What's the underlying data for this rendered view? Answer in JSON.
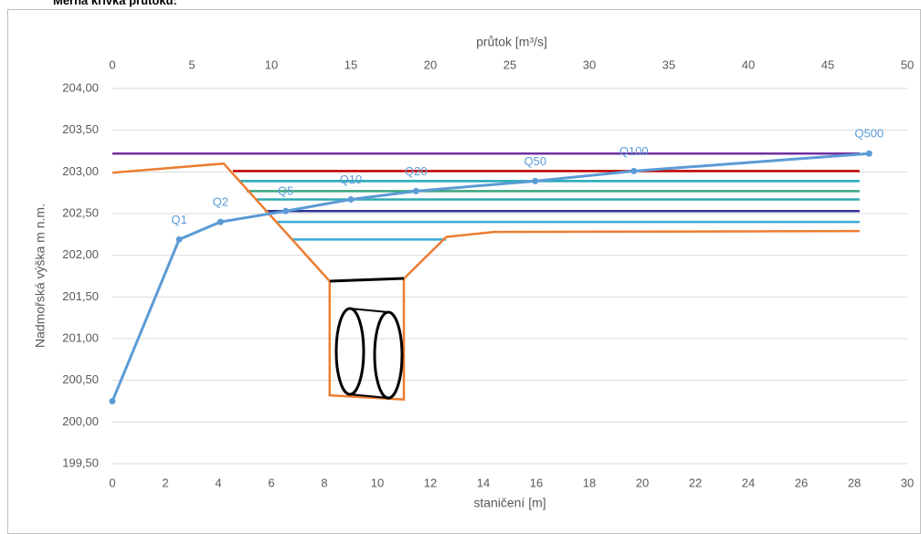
{
  "chart_data": {
    "type": "line",
    "title": "Měrná křivka průtoku:",
    "x_label": "staničení [m]",
    "x2_label": "průtok [m³/s]",
    "y_label": "Nadmořská výška m n.m.",
    "xlim": [
      0,
      30
    ],
    "xticks": [
      0,
      2,
      4,
      6,
      8,
      10,
      12,
      14,
      16,
      18,
      20,
      22,
      24,
      26,
      28,
      30
    ],
    "x2lim": [
      0,
      50
    ],
    "x2ticks": [
      0,
      5,
      10,
      15,
      20,
      25,
      30,
      35,
      40,
      45,
      50
    ],
    "ylim": [
      199.5,
      204
    ],
    "yticks": [
      {
        "value": 199.5,
        "label": "199,50"
      },
      {
        "value": 200,
        "label": "200,00"
      },
      {
        "value": 200.5,
        "label": "200,50"
      },
      {
        "value": 201,
        "label": "201,00"
      },
      {
        "value": 201.5,
        "label": "201,50"
      },
      {
        "value": 202,
        "label": "202,00"
      },
      {
        "value": 202.5,
        "label": "202,50"
      },
      {
        "value": 203,
        "label": "203,00"
      },
      {
        "value": 203.5,
        "label": "203,50"
      },
      {
        "value": 204,
        "label": "204,00"
      }
    ],
    "grid": true,
    "series": [
      {
        "color": "#7030a0",
        "x": [
          0,
          28.2
        ],
        "values": [
          203.22,
          203.22
        ]
      },
      {
        "color": "#c00000",
        "x": [
          4.55,
          28.2
        ],
        "values": [
          203.01,
          203.01
        ]
      },
      {
        "color": "#20a9b8",
        "x": [
          4.8,
          28.2
        ],
        "values": [
          202.89,
          202.89
        ]
      },
      {
        "color": "#3aa57a",
        "x": [
          5.07,
          28.2
        ],
        "values": [
          202.77,
          202.77
        ]
      },
      {
        "color": "#2eabb0",
        "x": [
          5.41,
          28.2
        ],
        "values": [
          202.67,
          202.67
        ]
      },
      {
        "color": "#2e3192",
        "x": [
          5.76,
          28.2
        ],
        "values": [
          202.53,
          202.53
        ]
      },
      {
        "color": "#3fa9d6",
        "x": [
          6.17,
          28.2
        ],
        "values": [
          202.4,
          202.4
        ]
      },
      {
        "color": "#38aad8",
        "x": [
          6.79,
          12.59
        ],
        "values": [
          202.19,
          202.19
        ]
      },
      {
        "color": "#ed7d31",
        "x": [
          0,
          4.2,
          8.2,
          8.2,
          11.0,
          11.0,
          12.6,
          14.4,
          28.2
        ],
        "values": [
          202.99,
          203.1,
          201.69,
          200.32,
          200.27,
          201.72,
          202.22,
          202.28,
          202.29
        ]
      },
      {
        "color": "#5b9bd5",
        "axis": "x2",
        "markers": true,
        "x": [
          0,
          4.2,
          6.8,
          10.9,
          15.0,
          19.1,
          26.6,
          32.8,
          47.6
        ],
        "values": [
          200.25,
          202.19,
          202.4,
          202.53,
          202.67,
          202.77,
          202.89,
          203.01,
          203.22
        ],
        "point_labels": [
          null,
          "Q1",
          "Q2",
          "Q5",
          "Q10",
          "Q20",
          "Q50",
          "Q100",
          "Q500"
        ]
      }
    ]
  }
}
